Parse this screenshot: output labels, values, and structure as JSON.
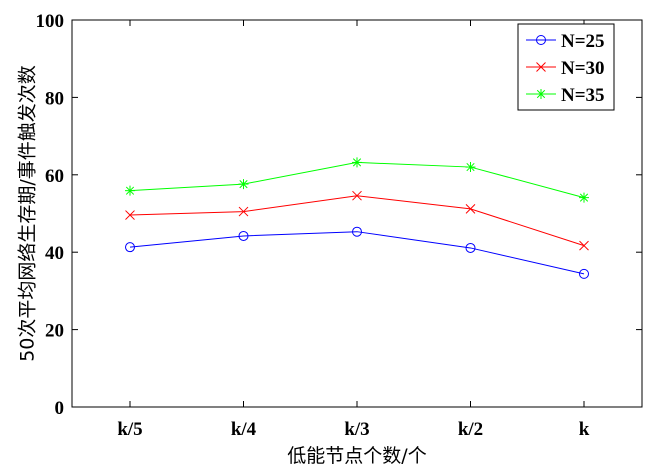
{
  "chart_data": {
    "type": "line",
    "categories": [
      "k/5",
      "k/4",
      "k/3",
      "k/2",
      "k"
    ],
    "xlabel": "低能节点个数/个",
    "ylabel": "50次平均网络生存期/事件触发次数",
    "ylim": [
      0,
      100
    ],
    "yticks": [
      0,
      20,
      40,
      60,
      80,
      100
    ],
    "grid": false,
    "legend_position": "top-right",
    "series": [
      {
        "name": "N=25",
        "color": "#0000ff",
        "marker": "circle",
        "values": [
          41.3,
          44.2,
          45.3,
          41.1,
          34.4
        ]
      },
      {
        "name": "N=30",
        "color": "#ff0000",
        "marker": "x",
        "values": [
          49.6,
          50.5,
          54.6,
          51.2,
          41.7
        ]
      },
      {
        "name": "N=35",
        "color": "#00ff00",
        "marker": "star",
        "values": [
          55.9,
          57.6,
          63.2,
          62.0,
          54.1
        ]
      }
    ]
  }
}
